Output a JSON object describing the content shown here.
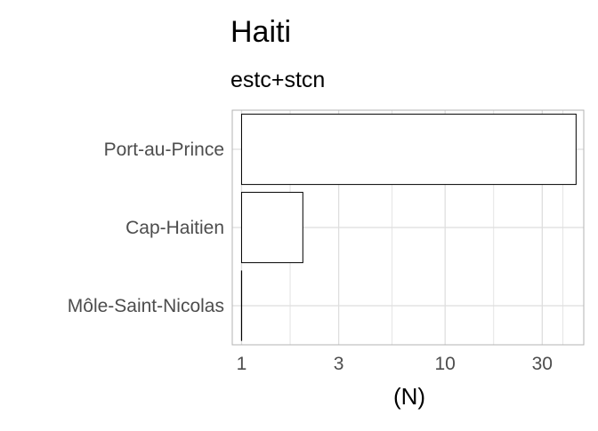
{
  "chart_data": {
    "type": "bar",
    "orientation": "horizontal",
    "title": "Haiti",
    "subtitle": "estc+stcn",
    "xlabel": "(N)",
    "ylabel": "",
    "x_scale": "log10",
    "xlim": [
      0.9,
      48
    ],
    "x_ticks": [
      1,
      3,
      10,
      30
    ],
    "x_tick_labels": [
      "1",
      "3",
      "10",
      "30"
    ],
    "categories": [
      "Port-au-Prince",
      "Cap-Haitien",
      "Môle-Saint-Nicolas"
    ],
    "values": [
      44,
      2,
      1
    ],
    "bar_fill": "#ffffff",
    "bar_stroke": "#000000",
    "grid": true,
    "grid_color": "#dedede",
    "panel_border_color": "#b3b3b3",
    "legend": "none"
  }
}
